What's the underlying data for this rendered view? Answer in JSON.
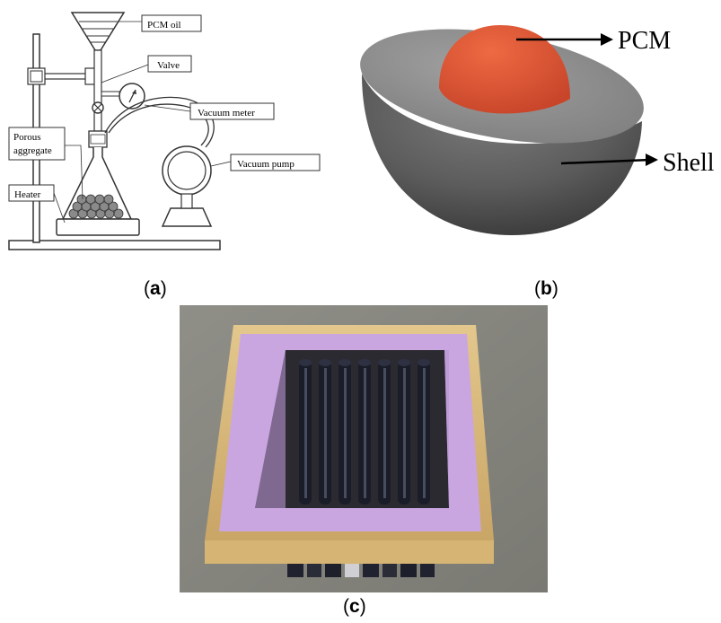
{
  "panel_a": {
    "labels": {
      "pcm_oil": "PCM oil",
      "valve": "Valve",
      "vacuum_meter": "Vacuum meter",
      "porous_aggregate_line1": "Porous",
      "porous_aggregate_line2": "aggregate",
      "heater": "Heater",
      "vacuum_pump": "Vacuum pump"
    }
  },
  "panel_b": {
    "labels": {
      "pcm": "PCM",
      "shell": "Shell"
    },
    "colors": {
      "core": "#e0542f",
      "shell_outer": "#5a5a5a",
      "shell_top": "#8c8c8c"
    }
  },
  "panel_c": {
    "colors": {
      "frame": "#d9b97a",
      "foam": "#c9a6e0",
      "tubes": "#1f2230"
    }
  },
  "captions": {
    "a": {
      "open": "(",
      "letter": "a",
      "close": ")"
    },
    "b": {
      "open": "(",
      "letter": "b",
      "close": ")"
    },
    "c": {
      "open": "(",
      "letter": "c",
      "close": ")"
    }
  }
}
